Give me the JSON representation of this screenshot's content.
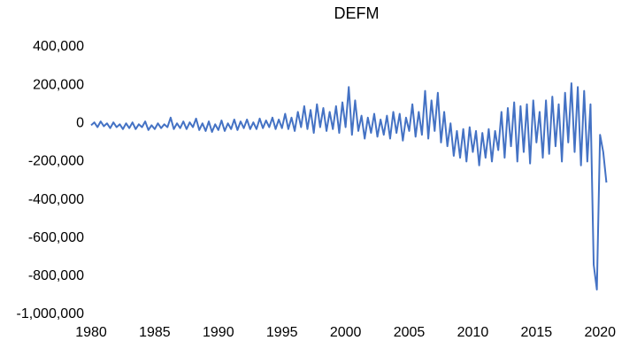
{
  "chart_data": {
    "type": "line",
    "title": "DEFM",
    "x": [
      1980,
      1980.25,
      1980.5,
      1980.75,
      1981,
      1981.25,
      1981.5,
      1981.75,
      1982,
      1982.25,
      1982.5,
      1982.75,
      1983,
      1983.25,
      1983.5,
      1983.75,
      1984,
      1984.25,
      1984.5,
      1984.75,
      1985,
      1985.25,
      1985.5,
      1985.75,
      1986,
      1986.25,
      1986.5,
      1986.75,
      1987,
      1987.25,
      1987.5,
      1987.75,
      1988,
      1988.25,
      1988.5,
      1988.75,
      1989,
      1989.25,
      1989.5,
      1989.75,
      1990,
      1990.25,
      1990.5,
      1990.75,
      1991,
      1991.25,
      1991.5,
      1991.75,
      1992,
      1992.25,
      1992.5,
      1992.75,
      1993,
      1993.25,
      1993.5,
      1993.75,
      1994,
      1994.25,
      1994.5,
      1994.75,
      1995,
      1995.25,
      1995.5,
      1995.75,
      1996,
      1996.25,
      1996.5,
      1996.75,
      1997,
      1997.25,
      1997.5,
      1997.75,
      1998,
      1998.25,
      1998.5,
      1998.75,
      1999,
      1999.25,
      1999.5,
      1999.75,
      2000,
      2000.25,
      2000.5,
      2000.75,
      2001,
      2001.25,
      2001.5,
      2001.75,
      2002,
      2002.25,
      2002.5,
      2002.75,
      2003,
      2003.25,
      2003.5,
      2003.75,
      2004,
      2004.25,
      2004.5,
      2004.75,
      2005,
      2005.25,
      2005.5,
      2005.75,
      2006,
      2006.25,
      2006.5,
      2006.75,
      2007,
      2007.25,
      2007.5,
      2007.75,
      2008,
      2008.25,
      2008.5,
      2008.75,
      2009,
      2009.25,
      2009.5,
      2009.75,
      2010,
      2010.25,
      2010.5,
      2010.75,
      2011,
      2011.25,
      2011.5,
      2011.75,
      2012,
      2012.25,
      2012.5,
      2012.75,
      2013,
      2013.25,
      2013.5,
      2013.75,
      2014,
      2014.25,
      2014.5,
      2014.75,
      2015,
      2015.25,
      2015.5,
      2015.75,
      2016,
      2016.25,
      2016.5,
      2016.75,
      2017,
      2017.25,
      2017.5,
      2017.75,
      2018,
      2018.25,
      2018.5,
      2018.75,
      2019,
      2019.25,
      2019.5,
      2019.75,
      2020,
      2020.25,
      2020.5
    ],
    "series": [
      {
        "color": "#4472c4",
        "values": [
          -10000,
          5000,
          -20000,
          10000,
          -15000,
          0,
          -25000,
          5000,
          -20000,
          -5000,
          -30000,
          0,
          -25000,
          5000,
          -30000,
          -5000,
          -20000,
          10000,
          -35000,
          -10000,
          -30000,
          0,
          -25000,
          -5000,
          -20000,
          30000,
          -30000,
          0,
          -25000,
          10000,
          -30000,
          5000,
          -20000,
          25000,
          -35000,
          0,
          -40000,
          10000,
          -45000,
          -5000,
          -35000,
          15000,
          -40000,
          0,
          -30000,
          20000,
          -35000,
          10000,
          -25000,
          20000,
          -30000,
          5000,
          -30000,
          25000,
          -25000,
          15000,
          -20000,
          30000,
          -30000,
          20000,
          -25000,
          50000,
          -30000,
          30000,
          -40000,
          60000,
          -20000,
          90000,
          -30000,
          70000,
          -50000,
          100000,
          -20000,
          80000,
          -40000,
          60000,
          -30000,
          90000,
          -50000,
          110000,
          -20000,
          190000,
          -60000,
          120000,
          -40000,
          40000,
          -80000,
          30000,
          -50000,
          50000,
          -70000,
          20000,
          -60000,
          40000,
          -80000,
          60000,
          -50000,
          50000,
          -90000,
          30000,
          -40000,
          100000,
          -70000,
          60000,
          -60000,
          170000,
          -80000,
          120000,
          -40000,
          160000,
          -100000,
          60000,
          -120000,
          0,
          -170000,
          -40000,
          -180000,
          -30000,
          -200000,
          -20000,
          -150000,
          -40000,
          -220000,
          -50000,
          -180000,
          -30000,
          -200000,
          -40000,
          -140000,
          60000,
          -180000,
          80000,
          -120000,
          110000,
          -200000,
          90000,
          -150000,
          100000,
          -210000,
          120000,
          -100000,
          60000,
          -180000,
          120000,
          -160000,
          140000,
          -120000,
          100000,
          -200000,
          160000,
          -100000,
          210000,
          -150000,
          190000,
          -220000,
          170000,
          -200000,
          100000,
          -740000,
          -870000,
          -60000,
          -150000,
          -310000
        ]
      }
    ],
    "xlim": [
      1980,
      2022
    ],
    "xticks": [
      1980,
      1985,
      1990,
      1995,
      2000,
      2005,
      2010,
      2015,
      2020
    ],
    "ylim": [
      -1000000,
      400000
    ],
    "yticks": [
      {
        "value": -1000000,
        "label": "-1,000,000"
      },
      {
        "value": -800000,
        "label": "-800,000"
      },
      {
        "value": -600000,
        "label": "-600,000"
      },
      {
        "value": -400000,
        "label": "-400,000"
      },
      {
        "value": -200000,
        "label": "-200,000"
      },
      0,
      {
        "value": 200000,
        "label": "200,000"
      },
      {
        "value": 400000,
        "label": "400,000"
      }
    ]
  }
}
